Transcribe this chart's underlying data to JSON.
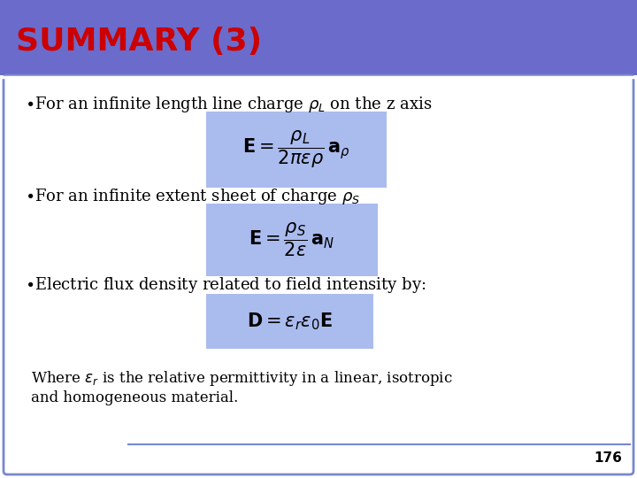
{
  "title": "SUMMARY (3)",
  "title_color": "#cc0000",
  "header_bg_color": "#6b6bcc",
  "slide_bg_color": "#ffffff",
  "border_color": "#7788cc",
  "formula_bg_color": "#aabbee",
  "page_number": "176",
  "line_color": "#ffffff",
  "title_fontsize": 26,
  "bullet_fontsize": 13,
  "formula_fontsize": 15,
  "footer_fontsize": 12
}
